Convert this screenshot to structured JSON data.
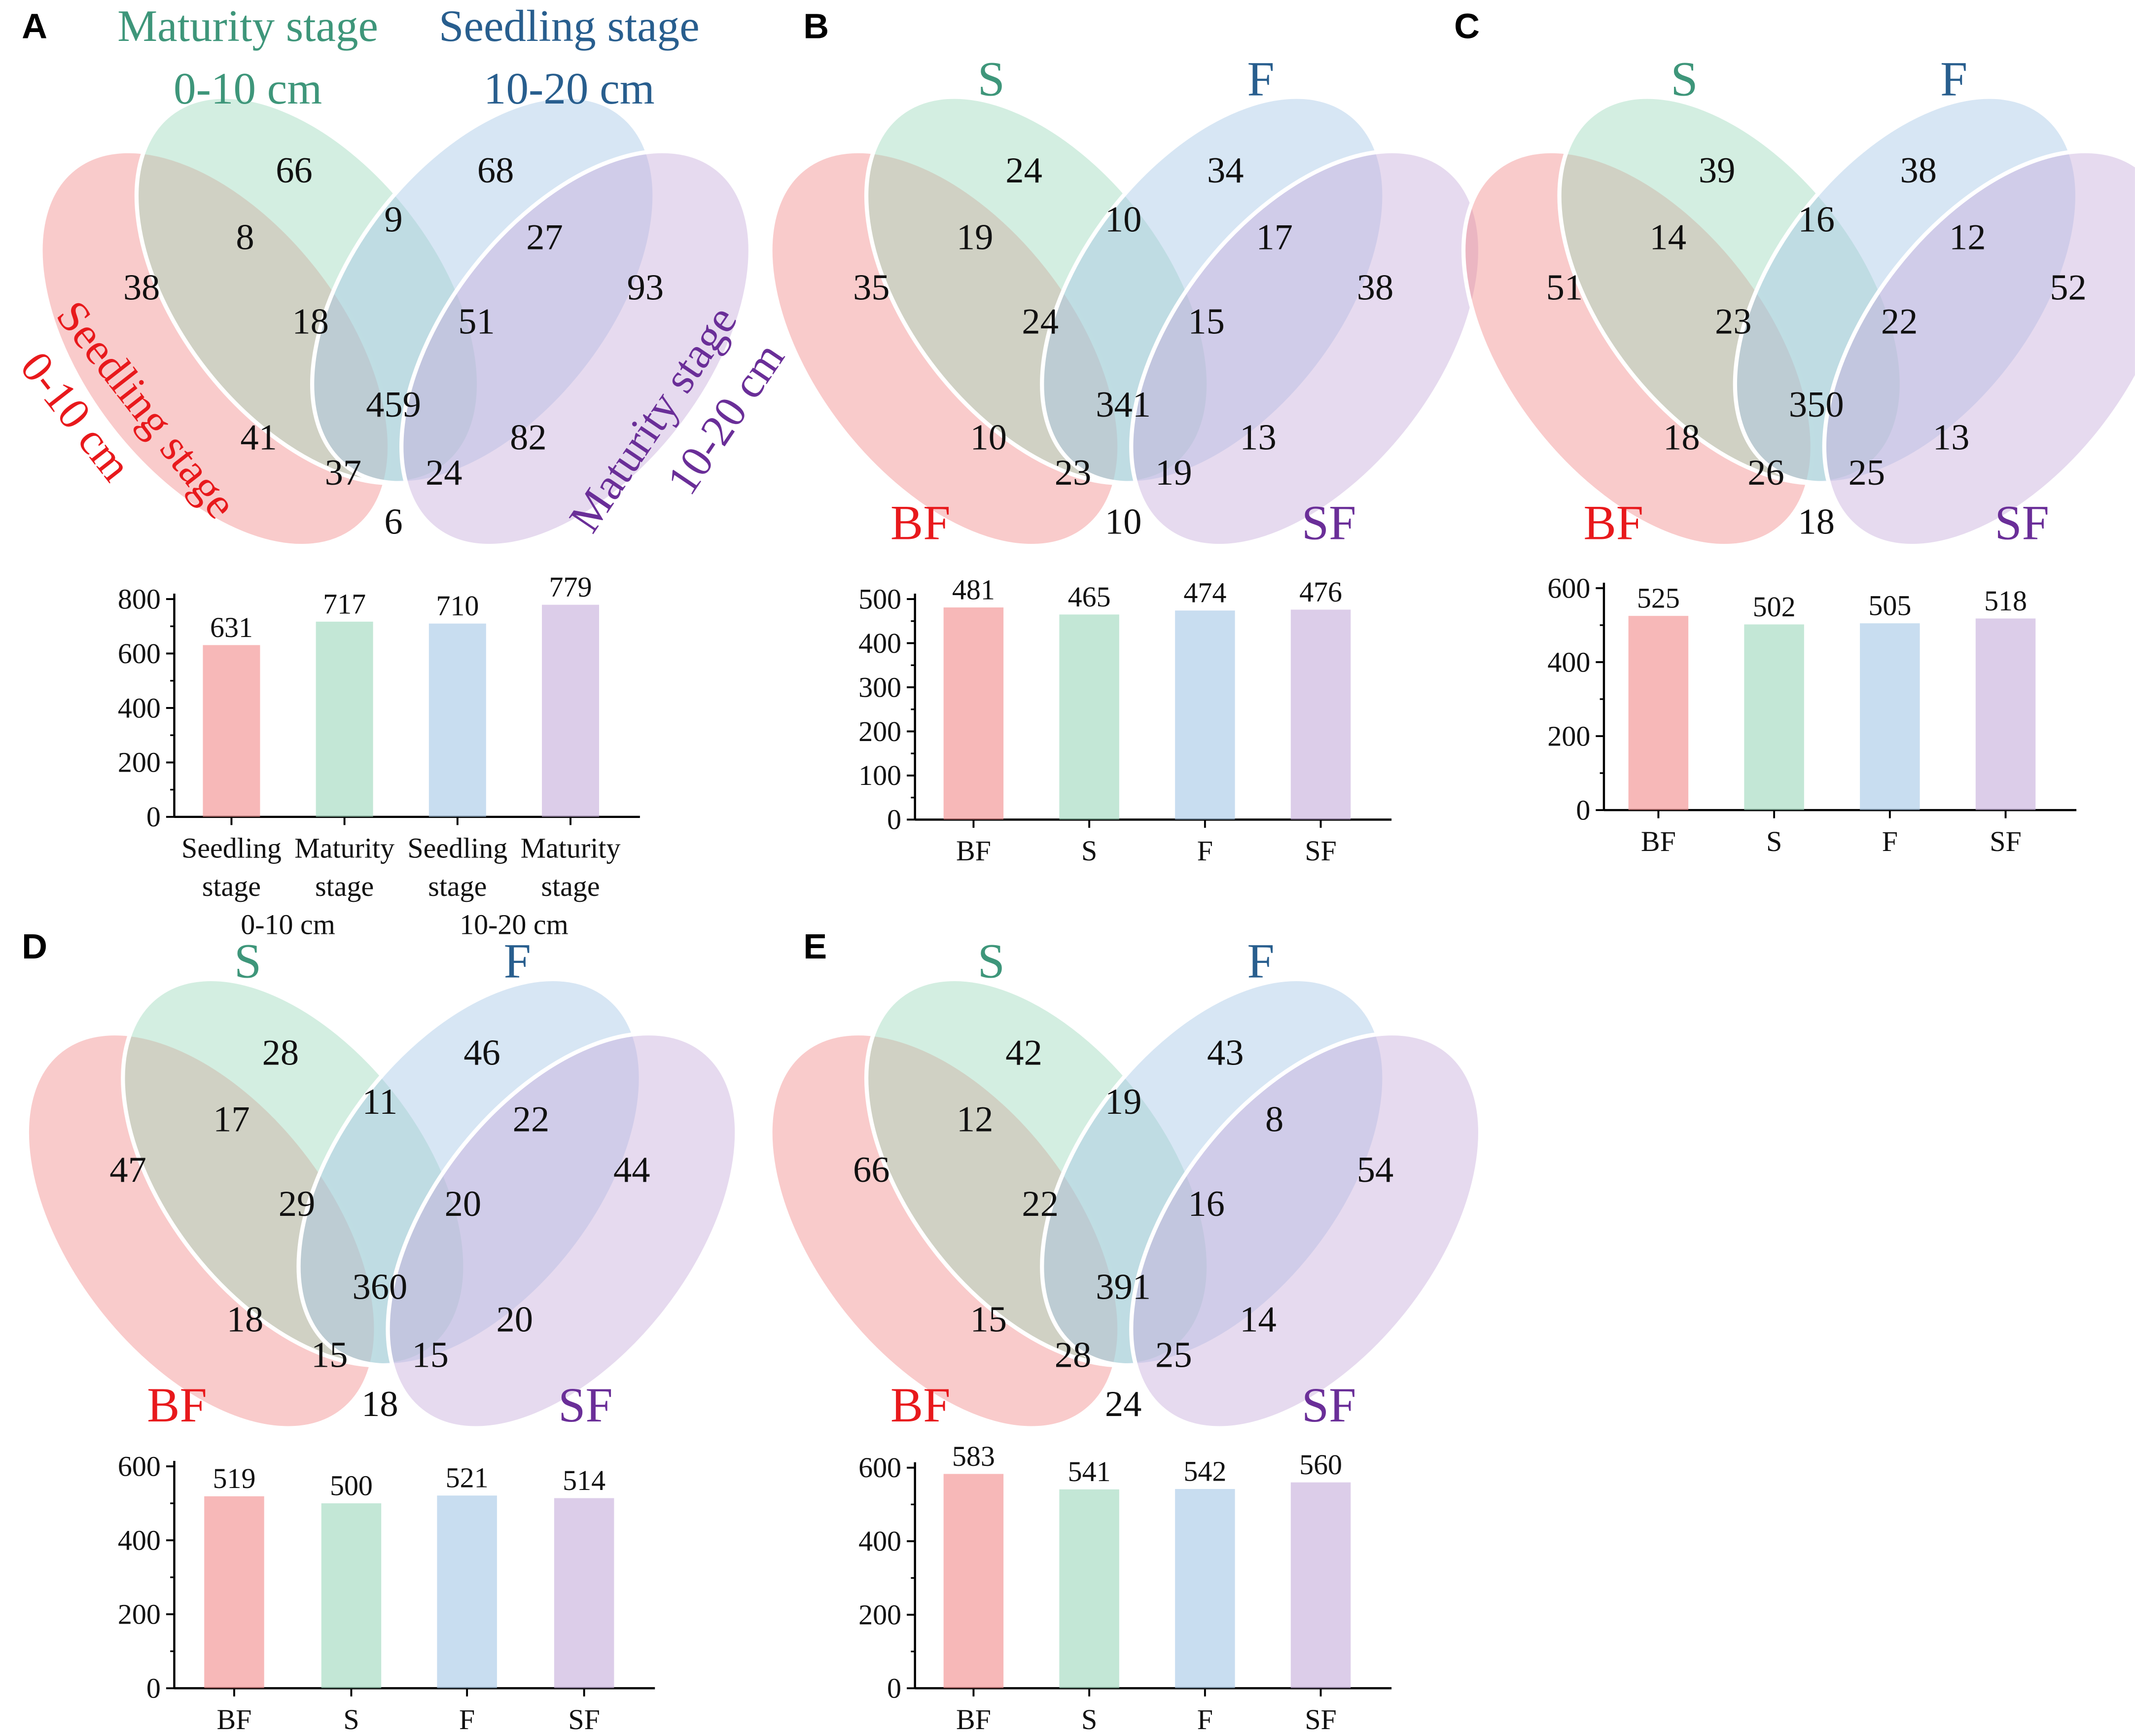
{
  "figure": {
    "colors": {
      "pink": "#f28c8c",
      "green": "#9ed9bd",
      "blue": "#a6c8e6",
      "purple": "#c7aedb",
      "red_label": "#e8191c",
      "green_label": "#3e967a",
      "blue_label": "#285e8e",
      "purple_label": "#6a2e98"
    }
  },
  "chart_data": [
    {
      "panel": "A",
      "type": "venn4+bar",
      "venn": {
        "set_labels": {
          "left": [
            "Seedling stage",
            "0-10 cm"
          ],
          "second": [
            "Maturity stage",
            "0-10 cm"
          ],
          "third": [
            "Seedling stage",
            "10-20 cm"
          ],
          "right": [
            "Maturity stage",
            "10-20 cm"
          ]
        },
        "regions": {
          "A": "38",
          "B": "66",
          "C": "68",
          "D": "93",
          "AB": "8",
          "BC": "9",
          "CD": "27",
          "ABC": "18",
          "BCD": "51",
          "AC": "41",
          "BD": "82",
          "ABCD": "459",
          "ACD": "37",
          "ABD": "24",
          "AD": "6"
        }
      },
      "bar": {
        "categories": [
          "Seedling stage 0-10 cm",
          "Maturity stage 0-10 cm",
          "Seedling stage 10-20 cm",
          "Maturity stage 10-20 cm"
        ],
        "tick_lines": [
          [
            "Seedling",
            "stage"
          ],
          [
            "Maturity",
            "stage"
          ],
          [
            "Seedling",
            "stage"
          ],
          [
            "Maturity",
            "stage"
          ]
        ],
        "group_labels": [
          "0-10 cm",
          "10-20 cm"
        ],
        "values": [
          631,
          717,
          710,
          779
        ],
        "labels": [
          "631",
          "717",
          "710",
          "779"
        ],
        "ylim": [
          0,
          800
        ],
        "yticks": [
          0,
          200,
          400,
          600,
          800
        ],
        "ytick_labels": [
          "0",
          "200",
          "400",
          "600",
          "800"
        ]
      }
    },
    {
      "panel": "B",
      "type": "venn4+bar",
      "venn": {
        "set_labels": {
          "left": [
            "BF"
          ],
          "second": [
            "S"
          ],
          "third": [
            "F"
          ],
          "right": [
            "SF"
          ]
        },
        "regions": {
          "A": "35",
          "B": "24",
          "C": "34",
          "D": "38",
          "AB": "19",
          "BC": "10",
          "CD": "17",
          "ABC": "24",
          "BCD": "15",
          "AC": "10",
          "BD": "13",
          "ABCD": "341",
          "ACD": "23",
          "ABD": "19",
          "AD": "10"
        }
      },
      "bar": {
        "categories": [
          "BF",
          "S",
          "F",
          "SF"
        ],
        "tick_lines": [
          [
            "BF"
          ],
          [
            "S"
          ],
          [
            "F"
          ],
          [
            "SF"
          ]
        ],
        "group_labels": [],
        "values": [
          481,
          465,
          474,
          476
        ],
        "labels": [
          "481",
          "465",
          "474",
          "476"
        ],
        "ylim": [
          0,
          500
        ],
        "yticks": [
          0,
          100,
          200,
          300,
          400,
          500
        ],
        "ytick_labels": [
          "0",
          "100",
          "200",
          "300",
          "400",
          "500"
        ]
      }
    },
    {
      "panel": "C",
      "type": "venn4+bar",
      "venn": {
        "set_labels": {
          "left": [
            "BF"
          ],
          "second": [
            "S"
          ],
          "third": [
            "F"
          ],
          "right": [
            "SF"
          ]
        },
        "regions": {
          "A": "51",
          "B": "39",
          "C": "38",
          "D": "52",
          "AB": "14",
          "BC": "16",
          "CD": "12",
          "ABC": "23",
          "BCD": "22",
          "AC": "18",
          "BD": "13",
          "ABCD": "350",
          "ACD": "26",
          "ABD": "25",
          "AD": "18"
        }
      },
      "bar": {
        "categories": [
          "BF",
          "S",
          "F",
          "SF"
        ],
        "tick_lines": [
          [
            "BF"
          ],
          [
            "S"
          ],
          [
            "F"
          ],
          [
            "SF"
          ]
        ],
        "group_labels": [],
        "values": [
          525,
          502,
          505,
          518
        ],
        "labels": [
          "525",
          "502",
          "505",
          "518"
        ],
        "ylim": [
          0,
          600
        ],
        "yticks": [
          0,
          200,
          400,
          600
        ],
        "ytick_labels": [
          "0",
          "200",
          "400",
          "600"
        ]
      }
    },
    {
      "panel": "D",
      "type": "venn4+bar",
      "venn": {
        "set_labels": {
          "left": [
            "BF"
          ],
          "second": [
            "S"
          ],
          "third": [
            "F"
          ],
          "right": [
            "SF"
          ]
        },
        "regions": {
          "A": "47",
          "B": "28",
          "C": "46",
          "D": "44",
          "AB": "17",
          "BC": "11",
          "CD": "22",
          "ABC": "29",
          "BCD": "20",
          "AC": "18",
          "BD": "20",
          "ABCD": "360",
          "ACD": "15",
          "ABD": "15",
          "AD": "18"
        }
      },
      "bar": {
        "categories": [
          "BF",
          "S",
          "F",
          "SF"
        ],
        "tick_lines": [
          [
            "BF"
          ],
          [
            "S"
          ],
          [
            "F"
          ],
          [
            "SF"
          ]
        ],
        "group_labels": [],
        "values": [
          519,
          500,
          521,
          514
        ],
        "labels": [
          "519",
          "500",
          "521",
          "514"
        ],
        "ylim": [
          0,
          600
        ],
        "yticks": [
          0,
          200,
          400,
          600
        ],
        "ytick_labels": [
          "0",
          "200",
          "400",
          "600"
        ]
      }
    },
    {
      "panel": "E",
      "type": "venn4+bar",
      "venn": {
        "set_labels": {
          "left": [
            "BF"
          ],
          "second": [
            "S"
          ],
          "third": [
            "F"
          ],
          "right": [
            "SF"
          ]
        },
        "regions": {
          "A": "66",
          "B": "42",
          "C": "43",
          "D": "54",
          "AB": "12",
          "BC": "19",
          "CD": "8",
          "ABC": "22",
          "BCD": "16",
          "AC": "15",
          "BD": "14",
          "ABCD": "391",
          "ACD": "28",
          "ABD": "25",
          "AD": "24"
        }
      },
      "bar": {
        "categories": [
          "BF",
          "S",
          "F",
          "SF"
        ],
        "tick_lines": [
          [
            "BF"
          ],
          [
            "S"
          ],
          [
            "F"
          ],
          [
            "SF"
          ]
        ],
        "group_labels": [],
        "values": [
          583,
          541,
          542,
          560
        ],
        "labels": [
          "583",
          "541",
          "542",
          "560"
        ],
        "ylim": [
          0,
          600
        ],
        "yticks": [
          0,
          200,
          400,
          600
        ],
        "ytick_labels": [
          "0",
          "200",
          "400",
          "600"
        ]
      }
    }
  ]
}
